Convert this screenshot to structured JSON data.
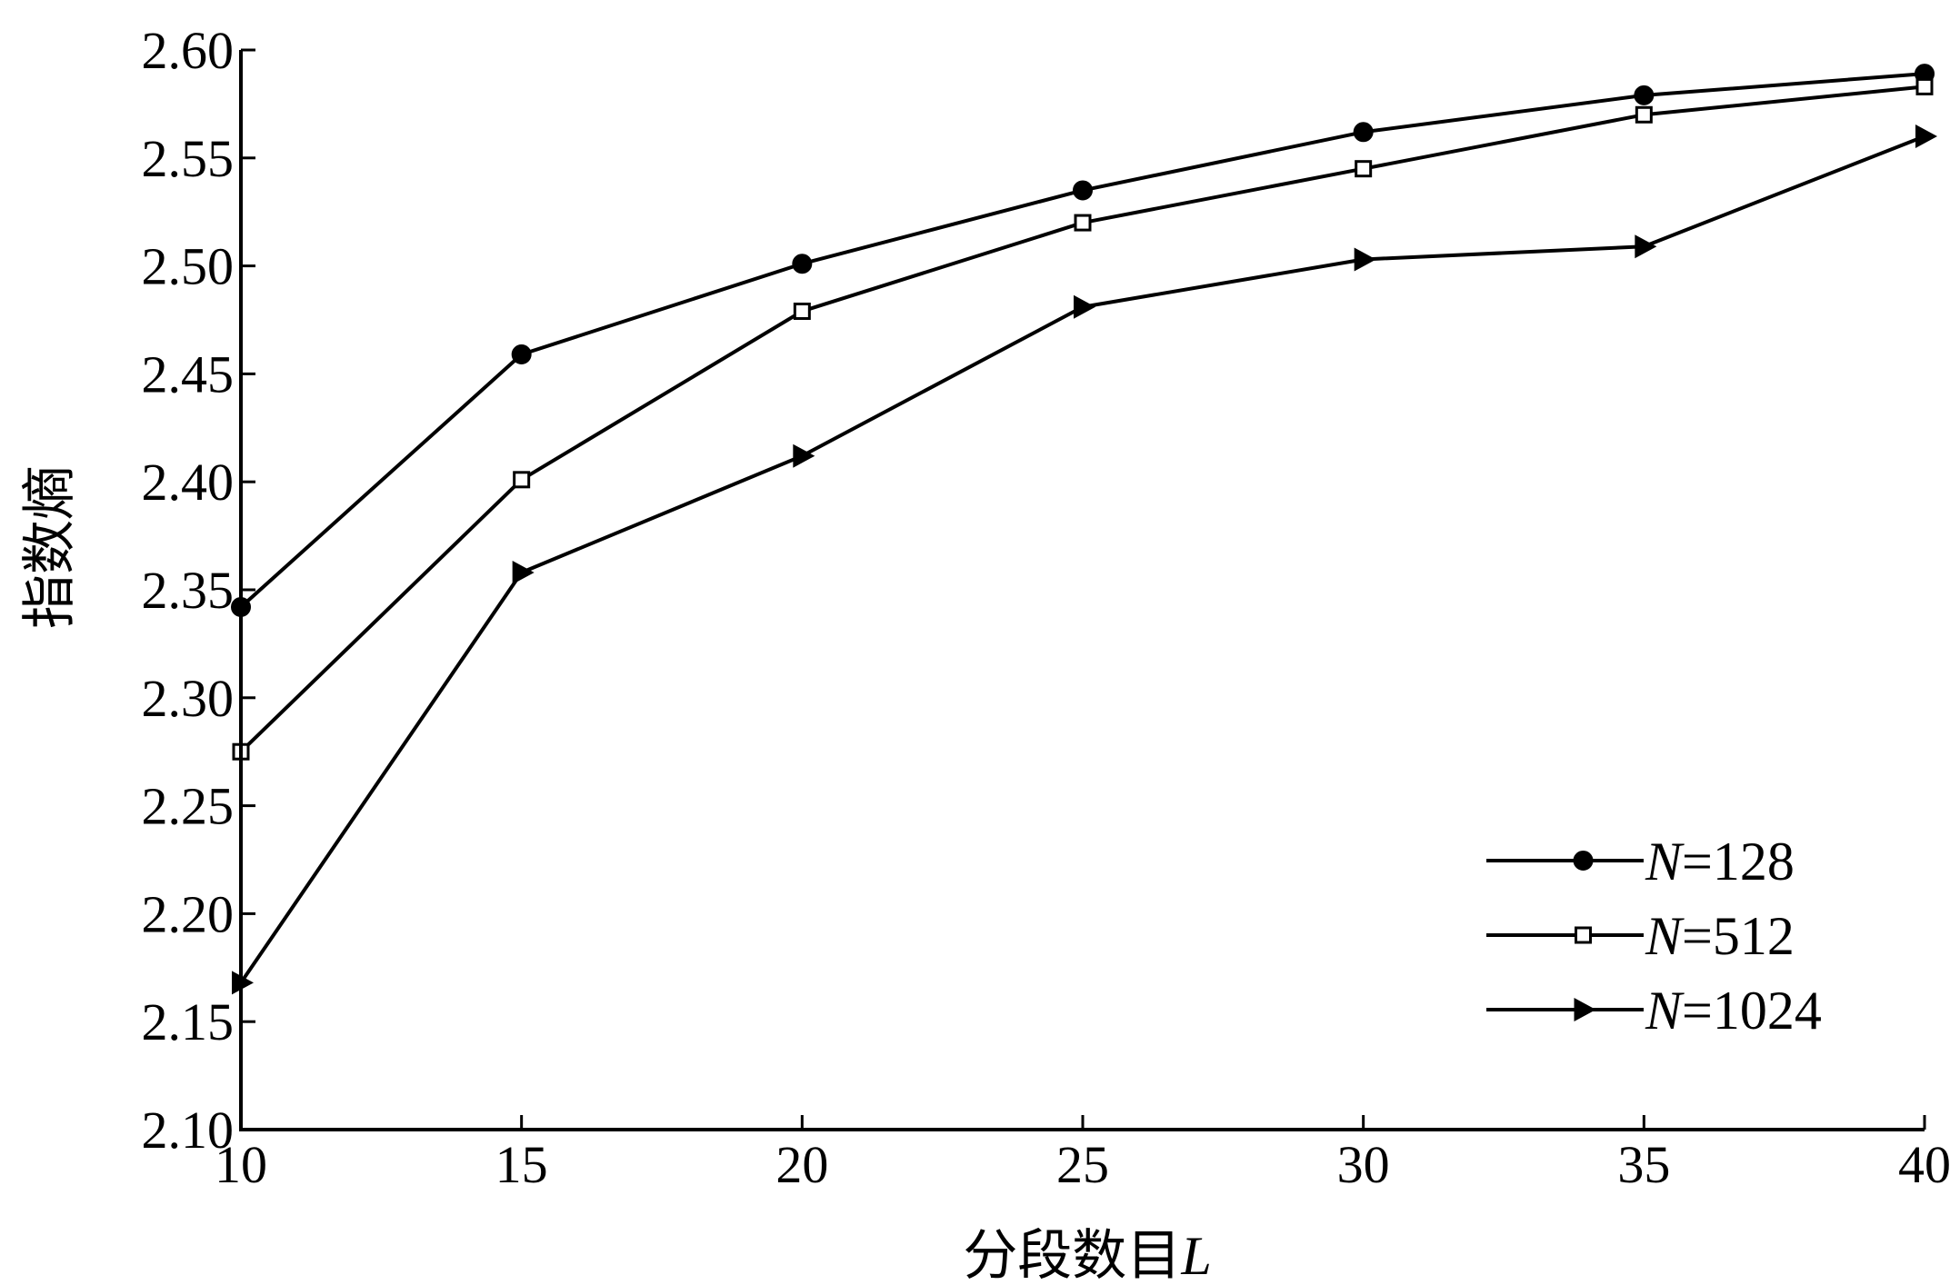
{
  "chart_data": {
    "type": "line",
    "title": "",
    "xlabel": "分段数目",
    "xlabel_var": "L",
    "ylabel": "指数熵",
    "x": [
      10,
      15,
      20,
      25,
      30,
      35,
      40
    ],
    "xlim": [
      10,
      40
    ],
    "ylim": [
      2.1,
      2.6
    ],
    "xticks": [
      "10",
      "15",
      "20",
      "25",
      "30",
      "35",
      "40"
    ],
    "yticks": [
      "2.10",
      "2.15",
      "2.20",
      "2.25",
      "2.30",
      "2.35",
      "2.40",
      "2.45",
      "2.50",
      "2.55",
      "2.60"
    ],
    "grid": false,
    "legend_position": "bottom-right",
    "series": [
      {
        "name": "N=128",
        "name_var": "N",
        "name_rest": "=128",
        "marker": "filled-circle",
        "values": [
          2.342,
          2.459,
          2.501,
          2.535,
          2.562,
          2.579,
          2.589
        ]
      },
      {
        "name": "N=512",
        "name_var": "N",
        "name_rest": "=512",
        "marker": "open-square",
        "values": [
          2.275,
          2.401,
          2.479,
          2.52,
          2.545,
          2.57,
          2.583
        ]
      },
      {
        "name": "N=1024",
        "name_var": "N",
        "name_rest": "=1024",
        "marker": "filled-triangle-right",
        "values": [
          2.168,
          2.358,
          2.412,
          2.481,
          2.503,
          2.509,
          2.56
        ]
      }
    ]
  }
}
